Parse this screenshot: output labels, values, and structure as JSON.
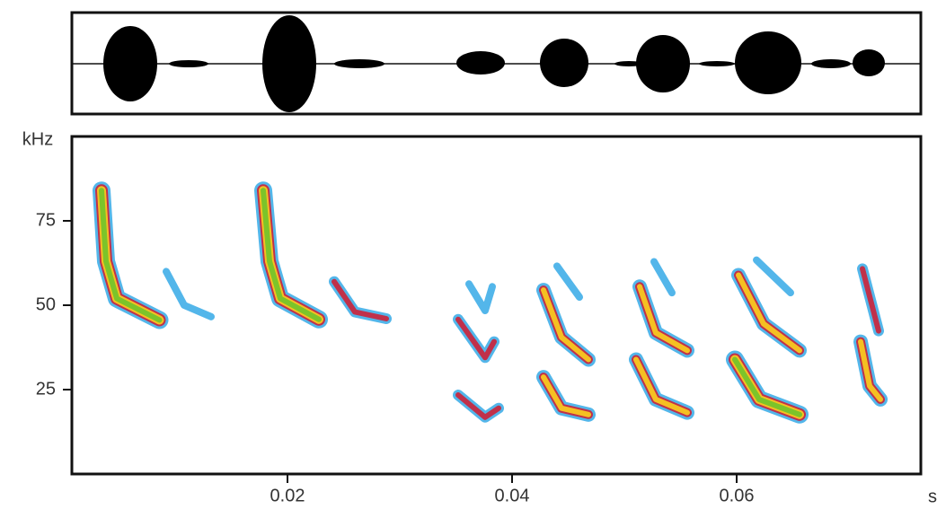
{
  "chart_data": {
    "type": "spectrogram",
    "y_label": "kHz",
    "x_label": "s",
    "xlim": [
      0.0008,
      0.0764
    ],
    "ylim": [
      0,
      100
    ],
    "xticks": [
      0.02,
      0.04,
      0.06
    ],
    "yticks": [
      25,
      50,
      75
    ],
    "palette": [
      "#35a9e6",
      "#c0304a",
      "#f5c022",
      "#7cc42a"
    ],
    "calls": [
      {
        "t": [
          0.00344,
          0.00384,
          0.0048,
          0.0086
        ],
        "f": [
          84,
          63,
          52,
          45.6
        ],
        "level": 4
      },
      {
        "t": [
          0.0092,
          0.0108,
          0.0132
        ],
        "f": [
          60,
          50,
          46.6
        ],
        "level": 1
      },
      {
        "t": [
          0.01784,
          0.0184,
          0.01936,
          0.0228
        ],
        "f": [
          84,
          63,
          52,
          45.8
        ],
        "level": 4
      },
      {
        "t": [
          0.02416,
          0.026,
          0.0288
        ],
        "f": [
          57,
          48,
          46
        ],
        "level": 2
      },
      {
        "t": [
          0.0352,
          0.0376,
          0.0388
        ],
        "f": [
          23.4,
          16.8,
          19.5
        ],
        "level": 2
      },
      {
        "t": [
          0.0352,
          0.0376,
          0.0384
        ],
        "f": [
          45.8,
          34.5,
          39.2
        ],
        "level": 2
      },
      {
        "t": [
          0.03616,
          0.0376,
          0.03824
        ],
        "f": [
          56.3,
          48.4,
          55.5
        ],
        "level": 1
      },
      {
        "t": [
          0.044,
          0.046
        ],
        "f": [
          61.6,
          52.4
        ],
        "level": 1
      },
      {
        "t": [
          0.0428,
          0.0444,
          0.0468
        ],
        "f": [
          54.5,
          40.5,
          33.9
        ],
        "level": 3
      },
      {
        "t": [
          0.0428,
          0.0444,
          0.0468
        ],
        "f": [
          28.7,
          19.5,
          17.6
        ],
        "level": 3
      },
      {
        "t": [
          0.05264,
          0.05424
        ],
        "f": [
          62.9,
          53.7
        ],
        "level": 1
      },
      {
        "t": [
          0.05136,
          0.0528,
          0.0556
        ],
        "f": [
          55.5,
          41.8,
          36.6
        ],
        "level": 3
      },
      {
        "t": [
          0.05104,
          0.0528,
          0.0556
        ],
        "f": [
          33.9,
          22.1,
          18.2
        ],
        "level": 3
      },
      {
        "t": [
          0.06176,
          0.0648
        ],
        "f": [
          63.4,
          53.7
        ],
        "level": 1
      },
      {
        "t": [
          0.06016,
          0.0624,
          0.0656
        ],
        "f": [
          58.9,
          44.5,
          36.6
        ],
        "level": 3
      },
      {
        "t": [
          0.05984,
          0.062,
          0.0656
        ],
        "f": [
          33.9,
          22.1,
          17.6
        ],
        "level": 4
      },
      {
        "t": [
          0.0712,
          0.07264
        ],
        "f": [
          60.8,
          42.4
        ],
        "level": 2
      },
      {
        "t": [
          0.07104,
          0.07184,
          0.0728
        ],
        "f": [
          39.2,
          26.1,
          22.1
        ],
        "level": 3
      }
    ]
  }
}
